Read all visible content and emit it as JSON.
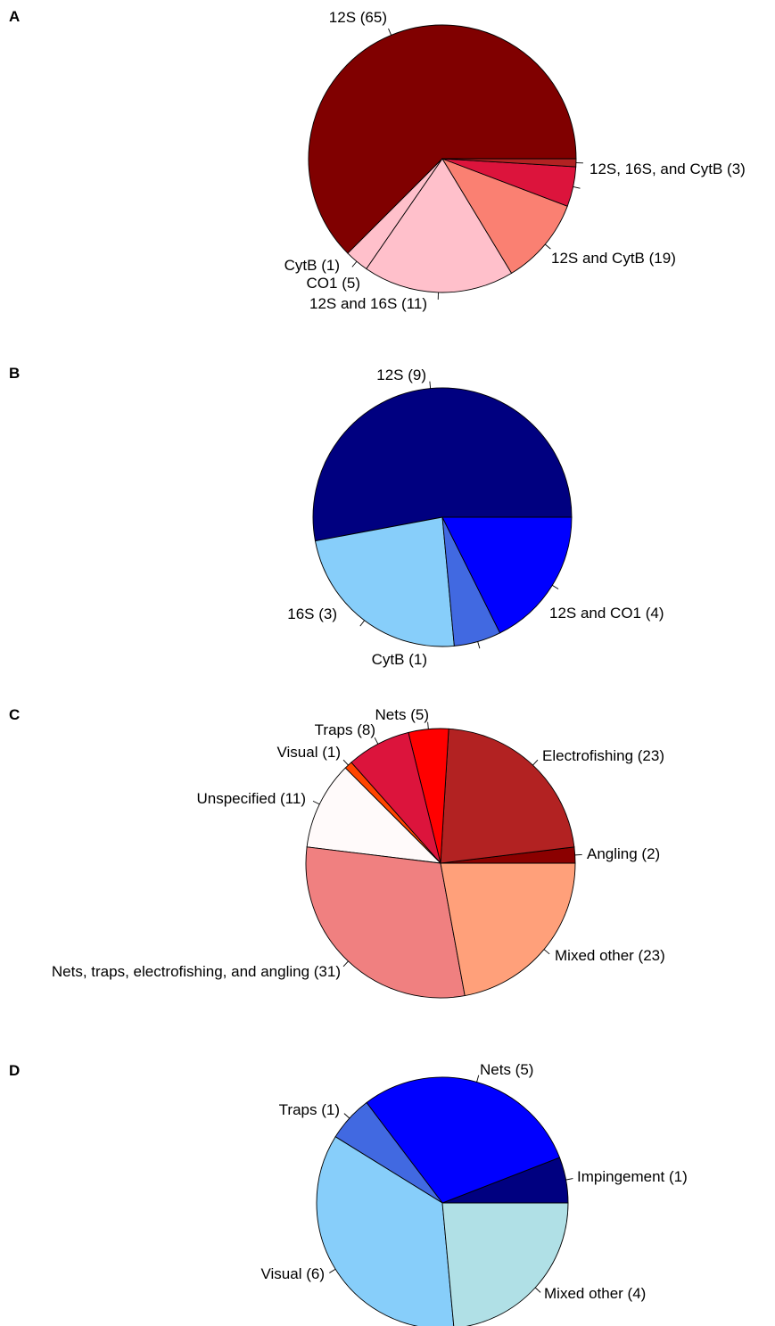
{
  "chart_data": [
    {
      "panel": "A",
      "type": "pie",
      "slices": [
        {
          "label": "12S (65)",
          "value": 65,
          "color": "#800000"
        },
        {
          "label": "12S, 16S, and CytB (3)",
          "value": 3,
          "color": "#FFC0CB"
        },
        {
          "label": "12S and CytB (19)",
          "value": 19,
          "color": "#FFC0CB"
        },
        {
          "label": "12S and 16S (11)",
          "value": 11,
          "color": "#FA8072"
        },
        {
          "label": "CO1 (5)",
          "value": 5,
          "color": "#DC143C"
        },
        {
          "label": "CytB (1)",
          "value": 1,
          "color": "#B22222"
        }
      ]
    },
    {
      "panel": "B",
      "type": "pie",
      "slices": [
        {
          "label": "12S (9)",
          "value": 9,
          "color": "#000080"
        },
        {
          "label": "12S and CO1 (4)",
          "value": 4,
          "color": "#87CEFA"
        },
        {
          "label": "CytB (1)",
          "value": 1,
          "color": "#4169E1"
        },
        {
          "label": "16S (3)",
          "value": 3,
          "color": "#0000FF"
        }
      ]
    },
    {
      "panel": "C",
      "type": "pie",
      "slices": [
        {
          "label": "Angling (2)",
          "value": 2,
          "color": "#8B0000"
        },
        {
          "label": "Electrofishing (23)",
          "value": 23,
          "color": "#B22222"
        },
        {
          "label": "Nets (5)",
          "value": 5,
          "color": "#FF0000"
        },
        {
          "label": "Traps (8)",
          "value": 8,
          "color": "#DC143C"
        },
        {
          "label": "Visual (1)",
          "value": 1,
          "color": "#FF4500"
        },
        {
          "label": "Unspecified (11)",
          "value": 11,
          "color": "#FFFAFA"
        },
        {
          "label": "Nets, traps, electrofishing, and angling (31)",
          "value": 31,
          "color": "#F08080"
        },
        {
          "label": "Mixed other (23)",
          "value": 23,
          "color": "#FFA07A"
        }
      ]
    },
    {
      "panel": "D",
      "type": "pie",
      "slices": [
        {
          "label": "Impingement (1)",
          "value": 1,
          "color": "#000080"
        },
        {
          "label": "Nets (5)",
          "value": 5,
          "color": "#0000FF"
        },
        {
          "label": "Traps (1)",
          "value": 1,
          "color": "#4169E1"
        },
        {
          "label": "Visual (6)",
          "value": 6,
          "color": "#87CEFA"
        },
        {
          "label": "Mixed other (4)",
          "value": 4,
          "color": "#B0E0E6"
        }
      ]
    }
  ]
}
